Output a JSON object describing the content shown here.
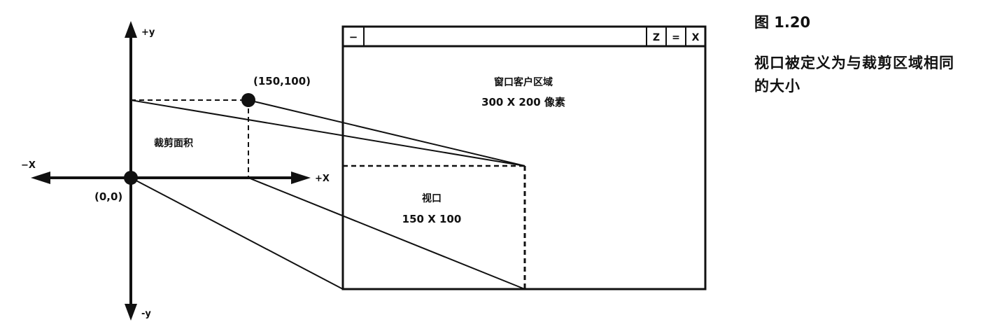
{
  "figure": {
    "number": "图 1.20",
    "caption": "视口被定义为与裁剪区域相同的大小"
  },
  "axes": {
    "y_pos": "+y",
    "y_neg": "-y",
    "x_pos": "+X",
    "x_neg": "−X",
    "origin": "(0,0)"
  },
  "clip": {
    "label": "裁剪面积",
    "corner_point": "(150,100)"
  },
  "window": {
    "title_buttons": [
      "−",
      "Z",
      "=",
      "X"
    ],
    "client_label_line1": "窗口客户区域",
    "client_label_line2": "300 X 200 像素"
  },
  "viewport": {
    "label_line1": "视口",
    "label_line2": "150 X 100"
  },
  "colors": {
    "ink": "#111111",
    "background": "#ffffff"
  }
}
